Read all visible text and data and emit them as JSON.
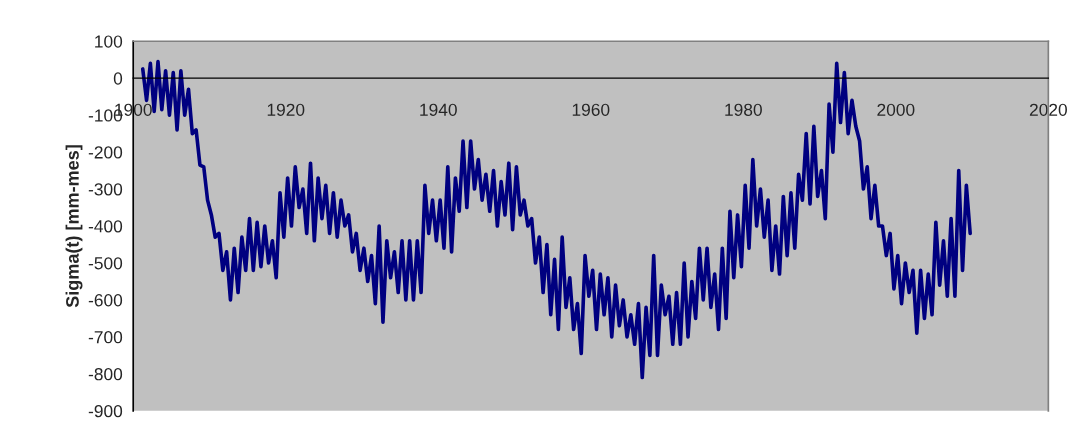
{
  "chart_data": {
    "type": "line",
    "ylabel": "Sigma(t) [mm-mes]",
    "xlim": [
      1900,
      2020
    ],
    "xticks": [
      1900,
      1920,
      1940,
      1960,
      1980,
      2000,
      2020
    ],
    "ylim": [
      -900,
      100
    ],
    "yticks": [
      -900,
      -800,
      -700,
      -600,
      -500,
      -400,
      -300,
      -200,
      -100,
      0,
      100
    ],
    "grid": false,
    "marker": "none",
    "line_style": "solid",
    "series": [
      {
        "color": "#000080",
        "x": [
          1901.25,
          1901.75,
          1902.25,
          1902.75,
          1903.25,
          1903.75,
          1904.25,
          1904.75,
          1905.25,
          1905.75,
          1906.25,
          1906.75,
          1907.25,
          1907.75,
          1908.25,
          1908.75,
          1909.25,
          1909.75,
          1910.25,
          1910.75,
          1911.25,
          1911.75,
          1912.25,
          1912.75,
          1913.25,
          1913.75,
          1914.25,
          1914.75,
          1915.25,
          1915.75,
          1916.25,
          1916.75,
          1917.25,
          1917.75,
          1918.25,
          1918.75,
          1919.25,
          1919.75,
          1920.25,
          1920.75,
          1921.25,
          1921.75,
          1922.25,
          1922.75,
          1923.25,
          1923.75,
          1924.25,
          1924.75,
          1925.25,
          1925.75,
          1926.25,
          1926.75,
          1927.25,
          1927.75,
          1928.25,
          1928.75,
          1929.25,
          1929.75,
          1930.25,
          1930.75,
          1931.25,
          1931.75,
          1932.25,
          1932.75,
          1933.25,
          1933.75,
          1934.25,
          1934.75,
          1935.25,
          1935.75,
          1936.25,
          1936.75,
          1937.25,
          1937.75,
          1938.25,
          1938.75,
          1939.25,
          1939.75,
          1940.25,
          1940.75,
          1941.25,
          1941.75,
          1942.25,
          1942.75,
          1943.25,
          1943.75,
          1944.25,
          1944.75,
          1945.25,
          1945.75,
          1946.25,
          1946.75,
          1947.25,
          1947.75,
          1948.25,
          1948.75,
          1949.25,
          1949.75,
          1950.25,
          1950.75,
          1951.25,
          1951.75,
          1952.25,
          1952.75,
          1953.25,
          1953.75,
          1954.25,
          1954.75,
          1955.25,
          1955.75,
          1956.25,
          1956.75,
          1957.25,
          1957.75,
          1958.25,
          1958.75,
          1959.25,
          1959.75,
          1960.25,
          1960.75,
          1961.25,
          1961.75,
          1962.25,
          1962.75,
          1963.25,
          1963.75,
          1964.25,
          1964.75,
          1965.25,
          1965.75,
          1966.25,
          1966.75,
          1967.25,
          1967.75,
          1968.25,
          1968.75,
          1969.25,
          1969.75,
          1970.25,
          1970.75,
          1971.25,
          1971.75,
          1972.25,
          1972.75,
          1973.25,
          1973.75,
          1974.25,
          1974.75,
          1975.25,
          1975.75,
          1976.25,
          1976.75,
          1977.25,
          1977.75,
          1978.25,
          1978.75,
          1979.25,
          1979.75,
          1980.25,
          1980.75,
          1981.25,
          1981.75,
          1982.25,
          1982.75,
          1983.25,
          1983.75,
          1984.25,
          1984.75,
          1985.25,
          1985.75,
          1986.25,
          1986.75,
          1987.25,
          1987.75,
          1988.25,
          1988.75,
          1989.25,
          1989.75,
          1990.25,
          1990.75,
          1991.25,
          1991.75,
          1992.25,
          1992.75,
          1993.25,
          1993.75,
          1994.25,
          1994.75,
          1995.25,
          1995.75,
          1996.25,
          1996.75,
          1997.25,
          1997.75,
          1998.25,
          1998.75,
          1999.25,
          1999.75,
          2000.25,
          2000.75,
          2001.25,
          2001.75,
          2002.25,
          2002.75,
          2003.25,
          2003.75,
          2004.25,
          2004.75,
          2005.25,
          2005.75,
          2006.25,
          2006.75,
          2007.25,
          2007.75,
          2008.25,
          2008.75,
          2009.25,
          2009.75
        ],
        "values": [
          25,
          -60,
          40,
          -90,
          45,
          -85,
          20,
          -100,
          15,
          -140,
          20,
          -100,
          -30,
          -150,
          -140,
          -235,
          -240,
          -330,
          -370,
          -430,
          -420,
          -520,
          -470,
          -600,
          -460,
          -580,
          -430,
          -520,
          -380,
          -520,
          -390,
          -510,
          -400,
          -500,
          -440,
          -540,
          -310,
          -430,
          -270,
          -400,
          -240,
          -350,
          -300,
          -420,
          -230,
          -440,
          -270,
          -380,
          -290,
          -420,
          -310,
          -430,
          -330,
          -400,
          -370,
          -470,
          -420,
          -520,
          -460,
          -550,
          -480,
          -610,
          -400,
          -660,
          -440,
          -540,
          -470,
          -580,
          -440,
          -600,
          -440,
          -600,
          -440,
          -580,
          -290,
          -420,
          -330,
          -440,
          -330,
          -460,
          -240,
          -470,
          -270,
          -360,
          -170,
          -350,
          -170,
          -300,
          -220,
          -330,
          -260,
          -360,
          -250,
          -400,
          -280,
          -370,
          -230,
          -410,
          -240,
          -370,
          -330,
          -400,
          -380,
          -500,
          -430,
          -580,
          -450,
          -640,
          -490,
          -680,
          -430,
          -620,
          -540,
          -680,
          -610,
          -745,
          -480,
          -590,
          -520,
          -680,
          -530,
          -640,
          -540,
          -700,
          -560,
          -670,
          -600,
          -700,
          -640,
          -720,
          -610,
          -810,
          -620,
          -750,
          -480,
          -750,
          -560,
          -640,
          -590,
          -720,
          -580,
          -720,
          -500,
          -700,
          -550,
          -650,
          -460,
          -600,
          -460,
          -620,
          -530,
          -680,
          -460,
          -650,
          -360,
          -540,
          -370,
          -510,
          -290,
          -460,
          -220,
          -400,
          -300,
          -430,
          -330,
          -520,
          -400,
          -530,
          -320,
          -480,
          -310,
          -460,
          -260,
          -330,
          -150,
          -340,
          -130,
          -320,
          -250,
          -380,
          -70,
          -200,
          40,
          -120,
          15,
          -150,
          -60,
          -130,
          -170,
          -300,
          -240,
          -380,
          -290,
          -400,
          -400,
          -480,
          -420,
          -570,
          -480,
          -610,
          -500,
          -580,
          -520,
          -690,
          -520,
          -650,
          -530,
          -640,
          -390,
          -560,
          -440,
          -590,
          -380,
          -590,
          -250,
          -520,
          -290,
          -420
        ]
      }
    ]
  }
}
